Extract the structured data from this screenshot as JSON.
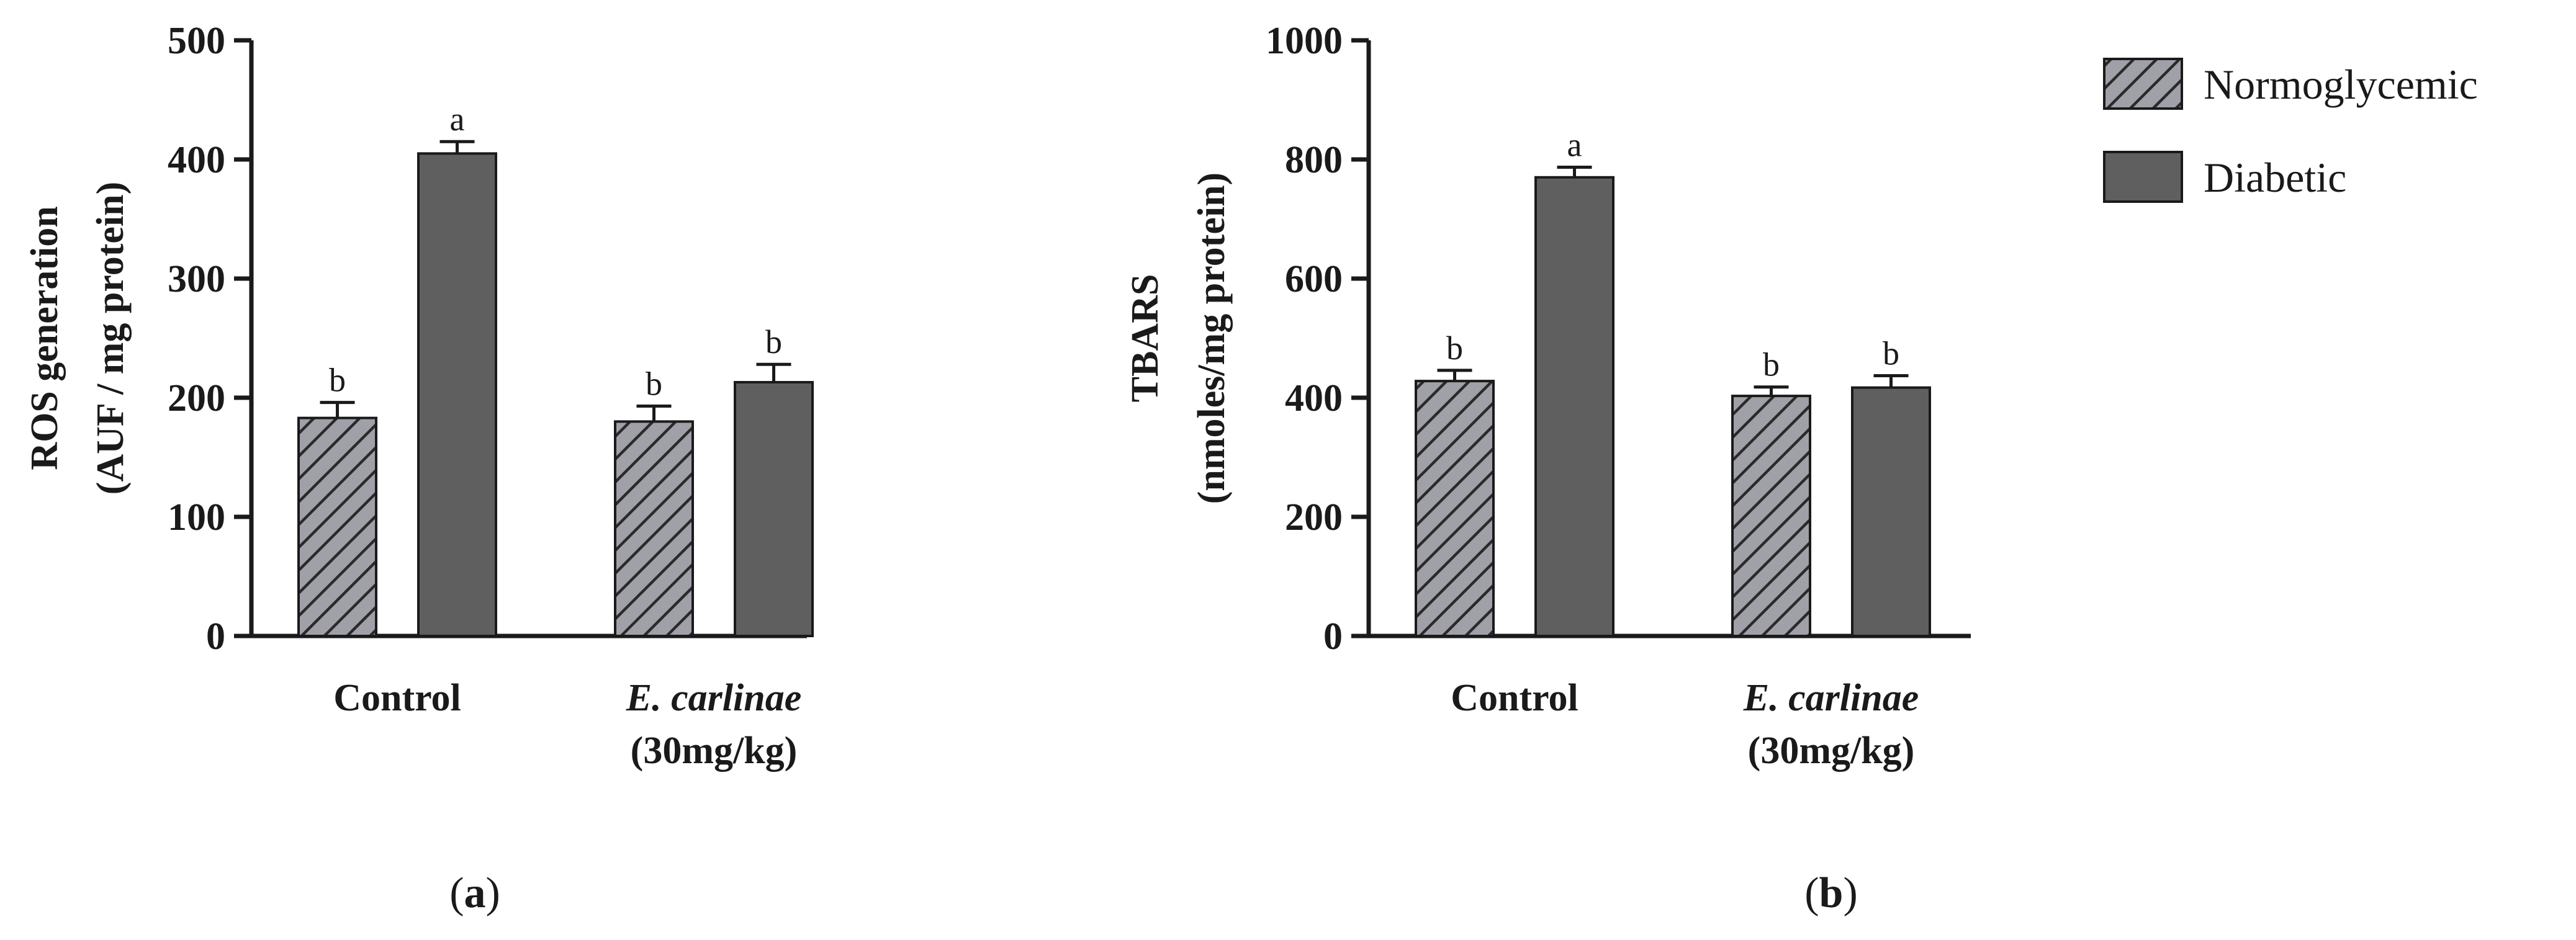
{
  "chart_data": [
    {
      "type": "bar",
      "panel": "(a)",
      "panel_label": {
        "open": "(",
        "letter": "a",
        "close": ")"
      },
      "ylabel_line1": "ROS generation",
      "ylabel_line2": "(AUF / mg protein)",
      "xlabel": "",
      "ylim": [
        0,
        500
      ],
      "yticks": [
        0,
        100,
        200,
        300,
        400,
        500
      ],
      "categories": [
        {
          "line1": "Control",
          "line1_italic": false,
          "line2": ""
        },
        {
          "line1": "E. carlinae",
          "line1_italic": true,
          "line2": "(30mg/kg)"
        }
      ],
      "series": [
        {
          "name": "Normoglycemic",
          "values": [
            183,
            180
          ],
          "errors": [
            13,
            13
          ],
          "letters": [
            "b",
            "b"
          ]
        },
        {
          "name": "Diabetic",
          "values": [
            405,
            213
          ],
          "errors": [
            10,
            15
          ],
          "letters": [
            "a",
            "b"
          ]
        }
      ]
    },
    {
      "type": "bar",
      "panel": "(b)",
      "panel_label": {
        "open": "(",
        "letter": "b",
        "close": ")"
      },
      "ylabel_line1": "TBARS",
      "ylabel_line2": "(nmoles/mg protein)",
      "xlabel": "",
      "ylim": [
        0,
        1000
      ],
      "yticks": [
        0,
        200,
        400,
        600,
        800,
        1000
      ],
      "categories": [
        {
          "line1": "Control",
          "line1_italic": false,
          "line2": ""
        },
        {
          "line1": "E. carlinae",
          "line1_italic": true,
          "line2": "(30mg/kg)"
        }
      ],
      "series": [
        {
          "name": "Normoglycemic",
          "values": [
            428,
            403
          ],
          "errors": [
            18,
            15
          ],
          "letters": [
            "b",
            "b"
          ]
        },
        {
          "name": "Diabetic",
          "values": [
            770,
            417
          ],
          "errors": [
            17,
            20
          ],
          "letters": [
            "a",
            "b"
          ]
        }
      ]
    }
  ],
  "legend": {
    "position": "top-right",
    "items": [
      {
        "label": "Normoglycemic",
        "pattern": "hatched"
      },
      {
        "label": "Diabetic",
        "pattern": "solid"
      }
    ]
  },
  "colors": {
    "normoglycemic_fill": "#a0a0a8",
    "hatch_stroke": "#2a2a2a",
    "diabetic_fill": "#5f5f5f",
    "axis": "#1a1a1a",
    "text": "#1a1a1a"
  }
}
